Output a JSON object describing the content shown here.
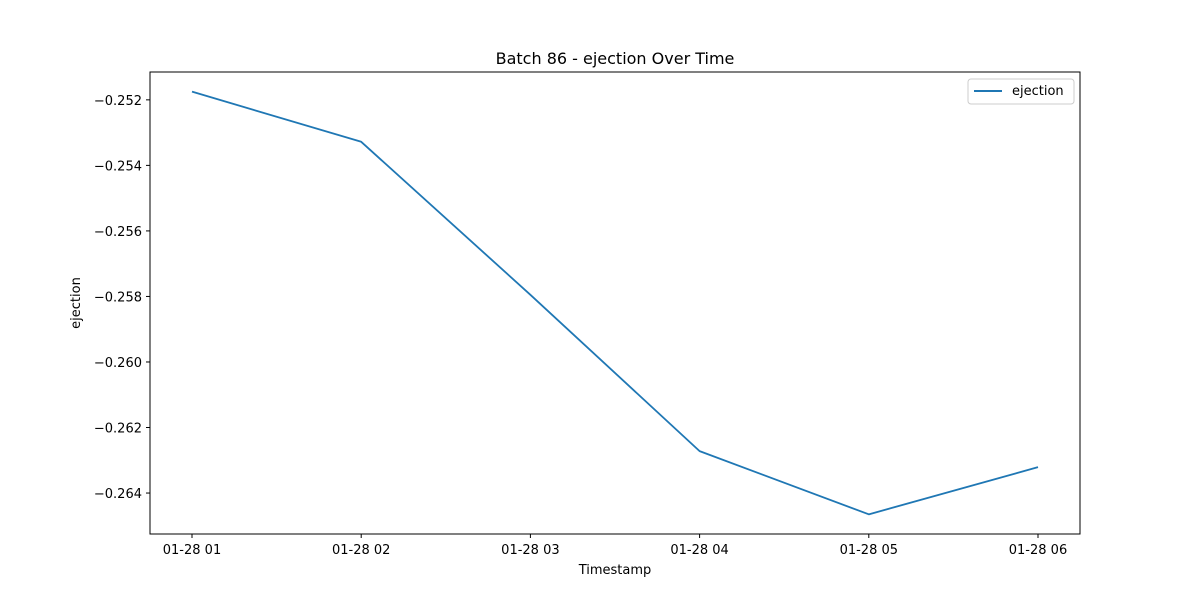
{
  "chart_data": {
    "type": "line",
    "title": "Batch 86 - ejection Over Time",
    "xlabel": "Timestamp",
    "ylabel": "ejection",
    "x": [
      "01-28 01",
      "01-28 02",
      "01-28 03",
      "01-28 04",
      "01-28 05",
      "01-28 06"
    ],
    "x_ticks": [
      "01-28 01",
      "01-28 02",
      "01-28 03",
      "01-28 04",
      "01-28 05",
      "01-28 06"
    ],
    "y_ticks": [
      "−0.252",
      "−0.254",
      "−0.256",
      "−0.258",
      "−0.260",
      "−0.262",
      "−0.264"
    ],
    "y_tick_values": [
      -0.252,
      -0.254,
      -0.256,
      -0.258,
      -0.26,
      -0.262,
      -0.264
    ],
    "ylim": [
      -0.26525,
      -0.25115
    ],
    "series": [
      {
        "name": "ejection",
        "color": "#1f77b4",
        "values": [
          -0.25175,
          -0.25328,
          -0.25795,
          -0.26272,
          -0.26465,
          -0.26321
        ]
      }
    ],
    "legend": "top-right",
    "grid": false
  }
}
